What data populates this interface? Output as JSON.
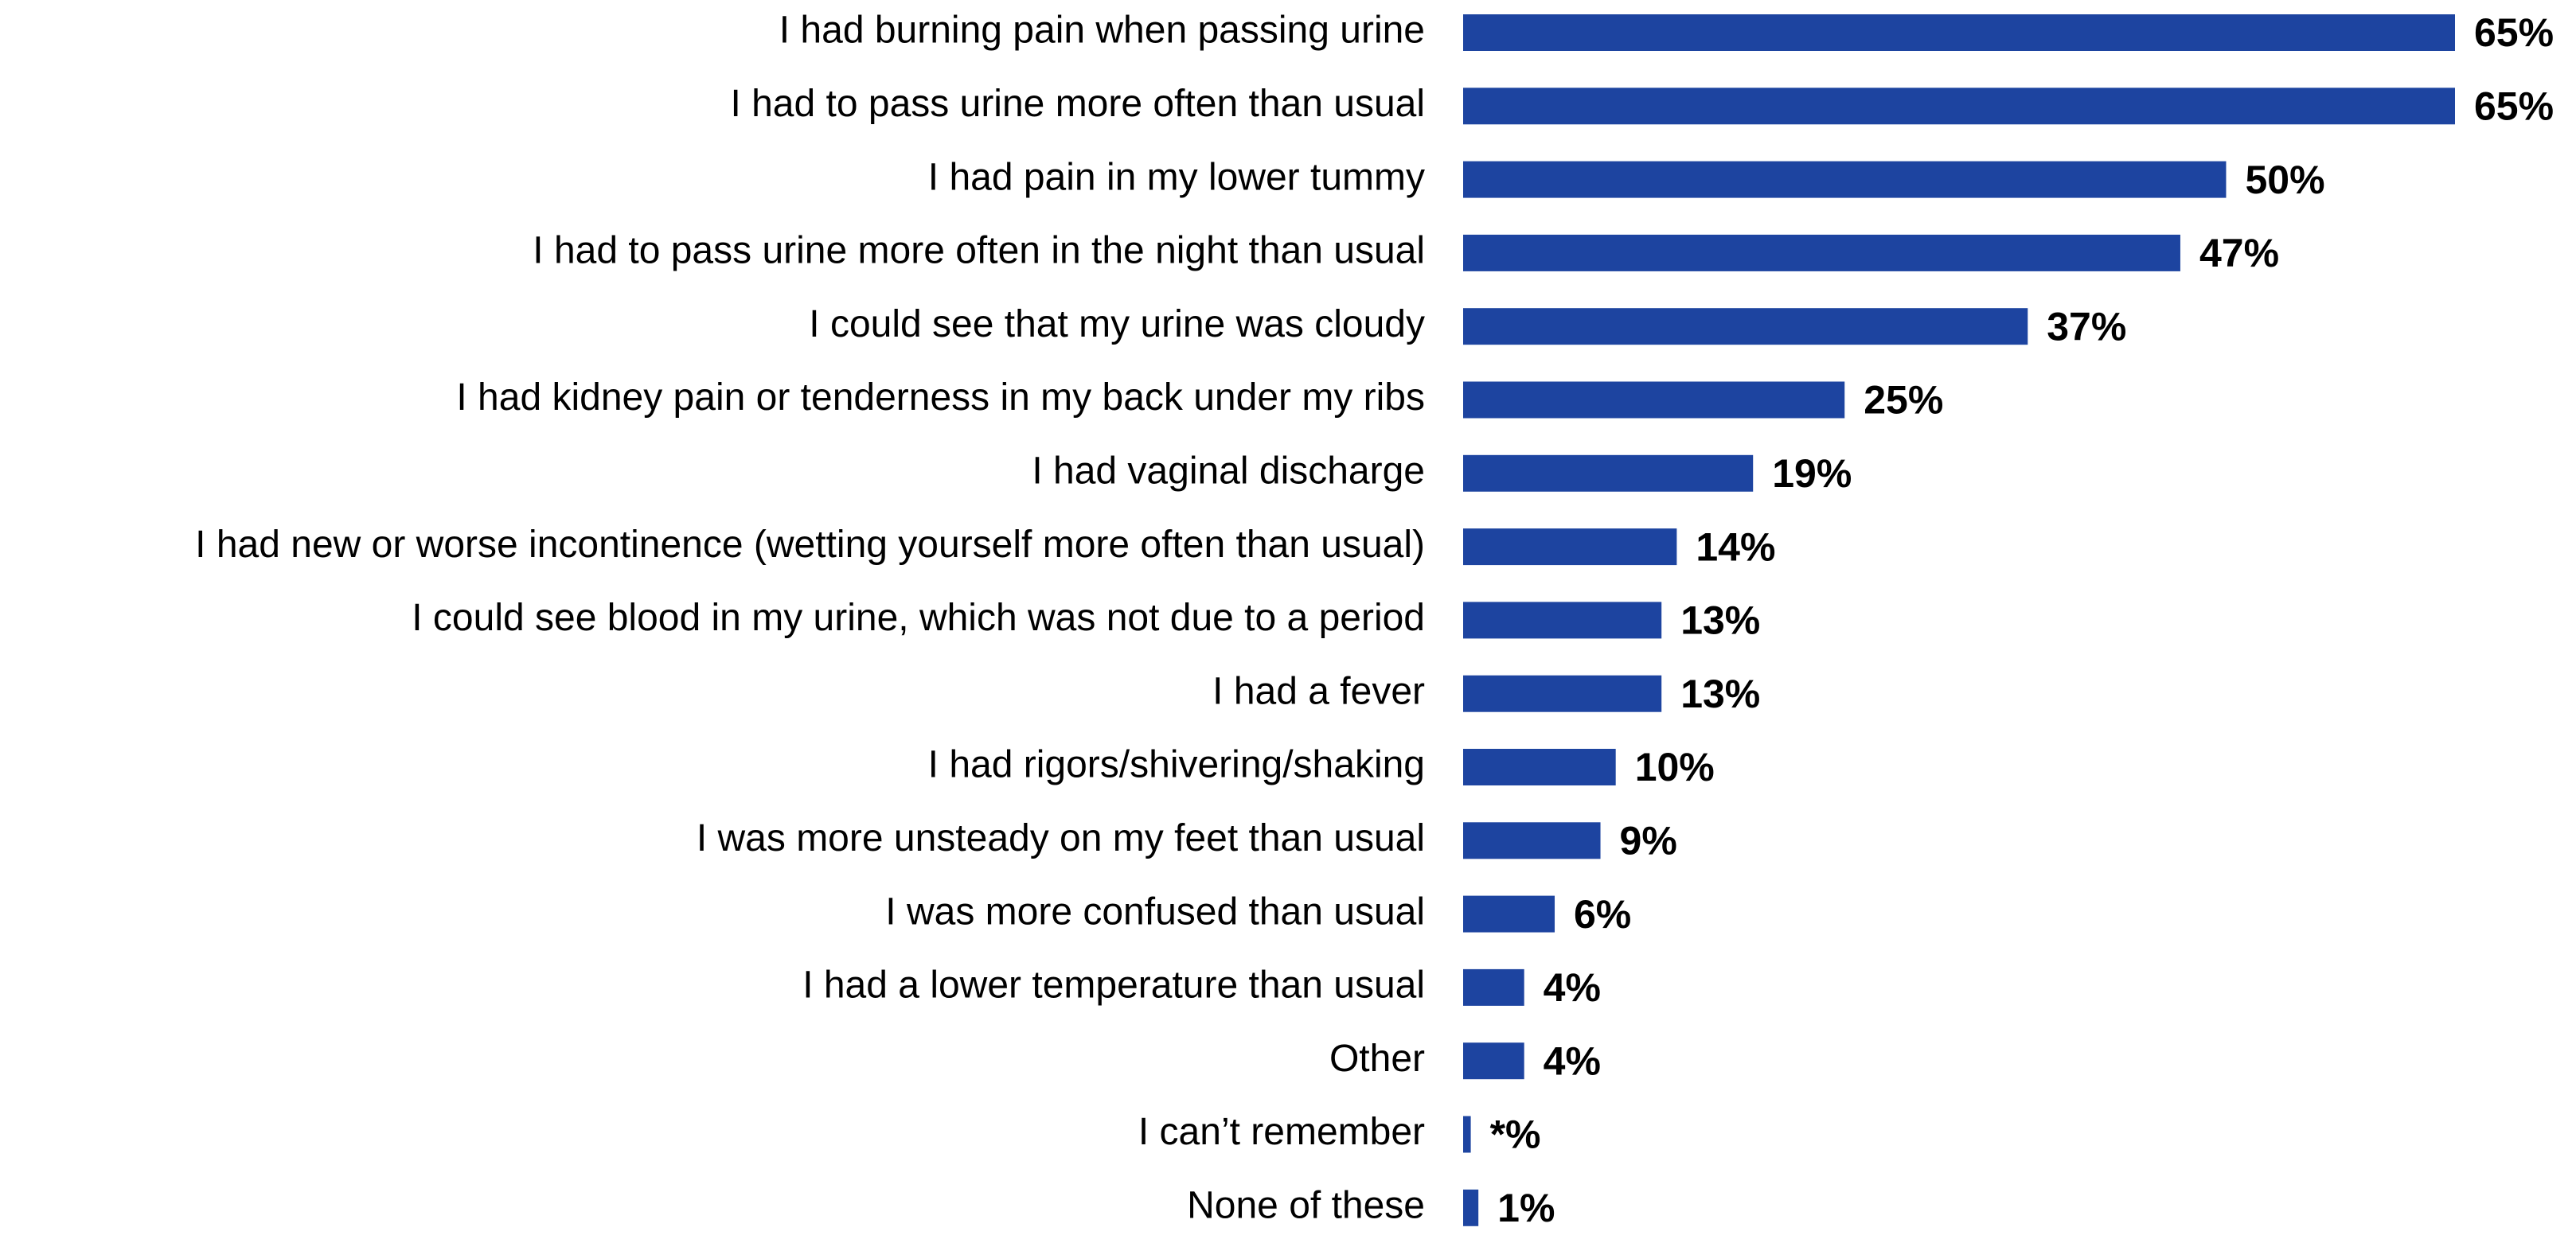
{
  "chart_data": {
    "type": "hbar",
    "color": "#1d44a0",
    "categories": [
      "I had burning pain when passing urine",
      "I had to pass urine more often than usual",
      "I had pain in my lower tummy",
      "I had to pass urine more often in the night than usual",
      "I could see that my urine was cloudy",
      "I had kidney pain or tenderness in my back under my ribs",
      "I had vaginal discharge",
      "I had new or worse incontinence (wetting yourself more often than usual)",
      "I could see blood in my urine, which was not due to a period",
      "I had a fever",
      "I had rigors/shivering/shaking",
      "I was more unsteady on my feet than usual",
      "I was more confused than usual",
      "I had a lower temperature than usual",
      "Other",
      "I can’t remember",
      "None of these"
    ],
    "values": [
      65,
      65,
      50,
      47,
      37,
      25,
      19,
      14,
      13,
      13,
      10,
      9,
      6,
      4,
      4,
      0.5,
      1
    ],
    "value_labels": [
      "65%",
      "65%",
      "50%",
      "47%",
      "37%",
      "25%",
      "19%",
      "14%",
      "13%",
      "13%",
      "10%",
      "9%",
      "6%",
      "4%",
      "4%",
      "*%",
      "1%"
    ]
  }
}
